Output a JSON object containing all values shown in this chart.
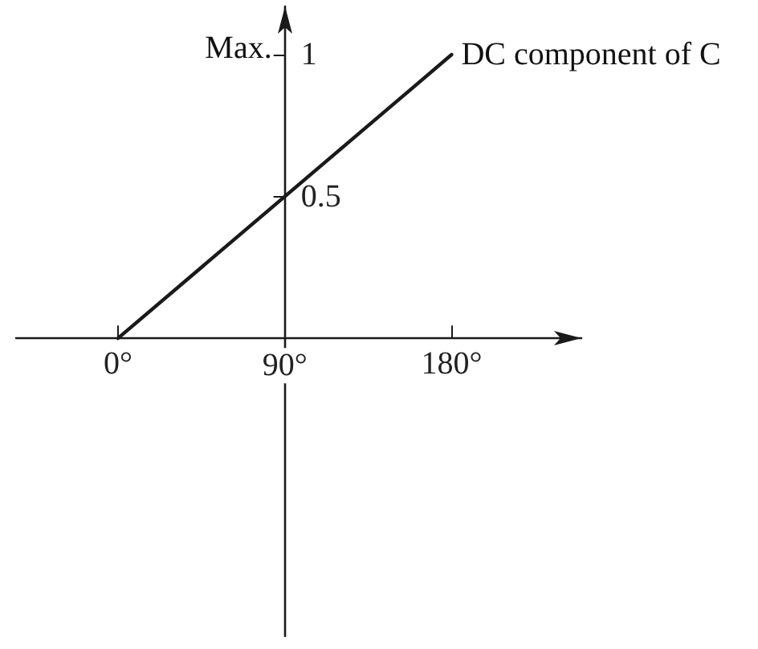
{
  "chart_data": {
    "type": "line",
    "x": [
      0,
      180
    ],
    "series": [
      {
        "name": "DC component of C",
        "color": "#1a1a1a",
        "values": [
          0,
          1
        ]
      }
    ],
    "xlim": [
      -55,
      250
    ],
    "xticks": [
      {
        "value": 0,
        "label": "0°"
      },
      {
        "value": 90,
        "label": "90°"
      },
      {
        "value": 180,
        "label": "180°"
      }
    ],
    "ylim": [
      -1.05,
      1.17
    ],
    "yticks": [
      0.5,
      1
    ],
    "annotations": [
      "Max."
    ],
    "grid": false,
    "marker": "none",
    "line_style": "solid"
  }
}
